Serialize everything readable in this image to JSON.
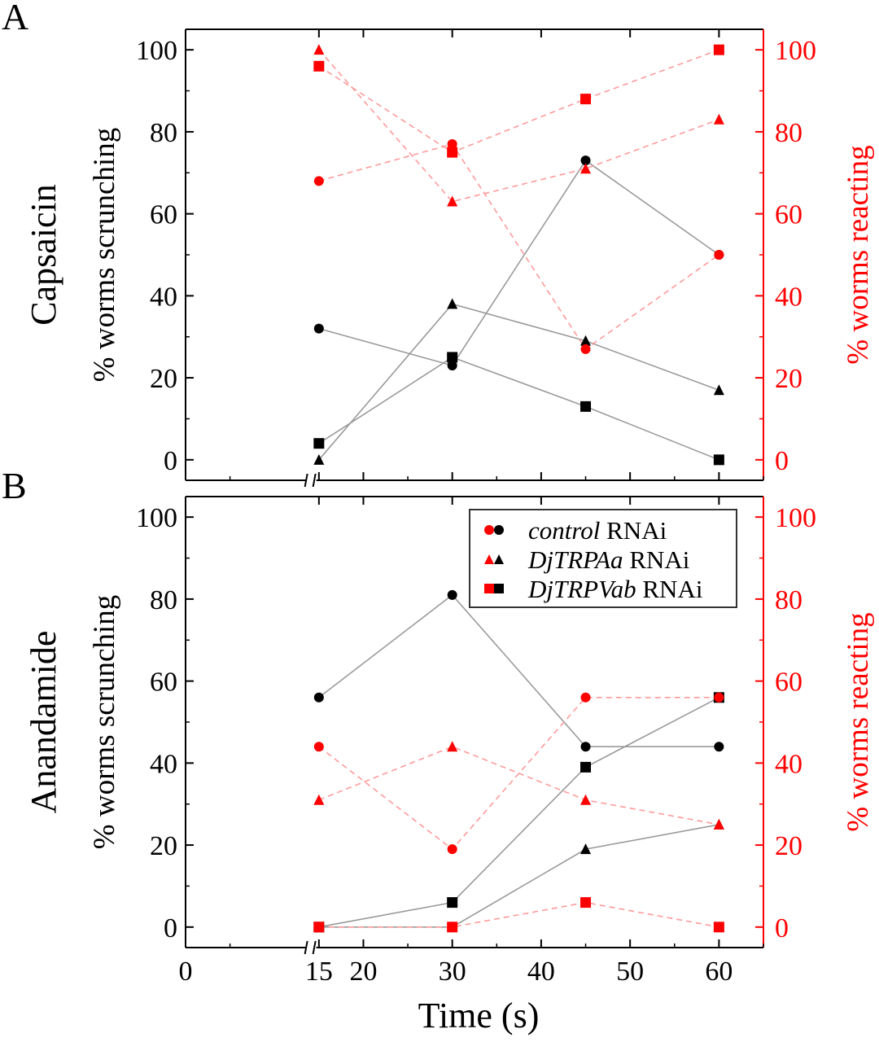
{
  "panel_labels": [
    "A",
    "B"
  ],
  "xlabel": "Time (s)",
  "x_ticks": [
    "0",
    "15",
    "20",
    "30",
    "40",
    "50",
    "60"
  ],
  "legend": [
    {
      "italic": "control",
      "suffix": " RNAi"
    },
    {
      "italic": "DjTRPAa",
      "suffix": " RNAi"
    },
    {
      "italic": "DjTRPVab",
      "suffix": " RNAi"
    }
  ],
  "colors": {
    "scrunching": "#000000",
    "reacting": "#ff0000",
    "reacting_line": "#ff9a9a",
    "scrunching_line": "#9a9a9a"
  },
  "chart_data": [
    {
      "type": "line",
      "panel": "A",
      "row_label": "Capsaicin",
      "ylabel_left": "% worms scrunching",
      "ylabel_right": "% worms reacting",
      "x": [
        15,
        30,
        45,
        60
      ],
      "xlim": [
        0,
        65
      ],
      "ylim": [
        -5,
        105
      ],
      "y_ticks": [
        0,
        20,
        40,
        60,
        80,
        100
      ],
      "axis_break": true,
      "series": [
        {
          "name": "control RNAi",
          "axis": "left",
          "marker": "circle",
          "values": [
            32,
            23,
            73,
            50
          ]
        },
        {
          "name": "DjTRPAa RNAi",
          "axis": "left",
          "marker": "triangle",
          "values": [
            0,
            38,
            29,
            17
          ]
        },
        {
          "name": "DjTRPVab RNAi",
          "axis": "left",
          "marker": "square",
          "values": [
            4,
            25,
            13,
            0
          ]
        },
        {
          "name": "control RNAi",
          "axis": "right",
          "marker": "circle",
          "values": [
            68,
            77,
            27,
            50
          ]
        },
        {
          "name": "DjTRPAa RNAi",
          "axis": "right",
          "marker": "triangle",
          "values": [
            100,
            63,
            71,
            83
          ]
        },
        {
          "name": "DjTRPVab RNAi",
          "axis": "right",
          "marker": "square",
          "values": [
            96,
            75,
            88,
            100
          ]
        }
      ]
    },
    {
      "type": "line",
      "panel": "B",
      "row_label": "Anandamide",
      "ylabel_left": "% worms scrunching",
      "ylabel_right": "% worms reacting",
      "x": [
        15,
        30,
        45,
        60
      ],
      "xlim": [
        0,
        65
      ],
      "ylim": [
        -5,
        105
      ],
      "y_ticks": [
        0,
        20,
        40,
        60,
        80,
        100
      ],
      "axis_break": true,
      "legend_position": "top-right",
      "series": [
        {
          "name": "control RNAi",
          "axis": "left",
          "marker": "circle",
          "values": [
            56,
            81,
            44,
            44
          ]
        },
        {
          "name": "DjTRPAa RNAi",
          "axis": "left",
          "marker": "triangle",
          "values": [
            0,
            0,
            19,
            25
          ]
        },
        {
          "name": "DjTRPVab RNAi",
          "axis": "left",
          "marker": "square",
          "values": [
            0,
            6,
            39,
            56
          ]
        },
        {
          "name": "control RNAi",
          "axis": "right",
          "marker": "circle",
          "values": [
            44,
            19,
            56,
            56
          ]
        },
        {
          "name": "DjTRPAa RNAi",
          "axis": "right",
          "marker": "triangle",
          "values": [
            31,
            44,
            31,
            25
          ]
        },
        {
          "name": "DjTRPVab RNAi",
          "axis": "right",
          "marker": "square",
          "values": [
            0,
            0,
            6,
            0
          ]
        }
      ]
    }
  ]
}
